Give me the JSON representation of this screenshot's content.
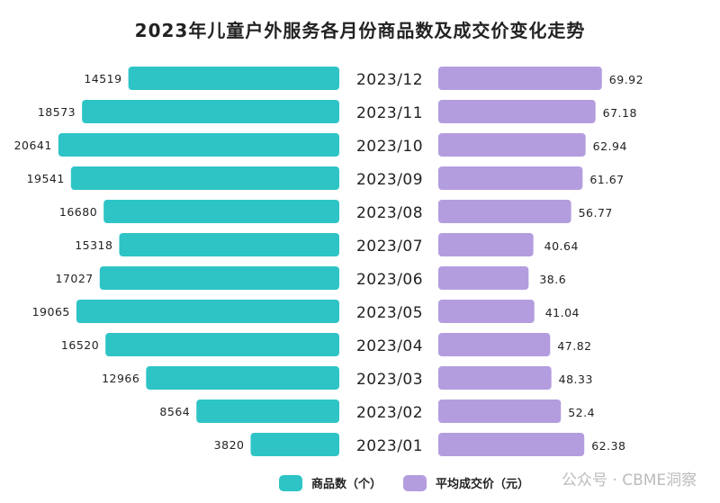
{
  "chart_data": {
    "type": "bar",
    "title": "2023年儿童户外服务各月份商品数及成交价变化走势",
    "categories": [
      "2023/12",
      "2023/11",
      "2023/10",
      "2023/09",
      "2023/08",
      "2023/07",
      "2023/06",
      "2023/05",
      "2023/04",
      "2023/03",
      "2023/02",
      "2023/01"
    ],
    "series": [
      {
        "name": "商品数（个）",
        "color": "#2ec4c6",
        "values": [
          14519,
          18573,
          20641,
          19541,
          16680,
          15318,
          17027,
          19065,
          16520,
          12966,
          8564,
          3820
        ]
      },
      {
        "name": "平均成交价（元）",
        "color": "#b39ddf",
        "values": [
          69.92,
          67.18,
          62.94,
          61.67,
          56.77,
          40.64,
          38.6,
          41.04,
          47.82,
          48.33,
          52.4,
          62.38
        ]
      }
    ],
    "legend_position": "bottom"
  },
  "watermark": "公众号 · CBME洞察"
}
